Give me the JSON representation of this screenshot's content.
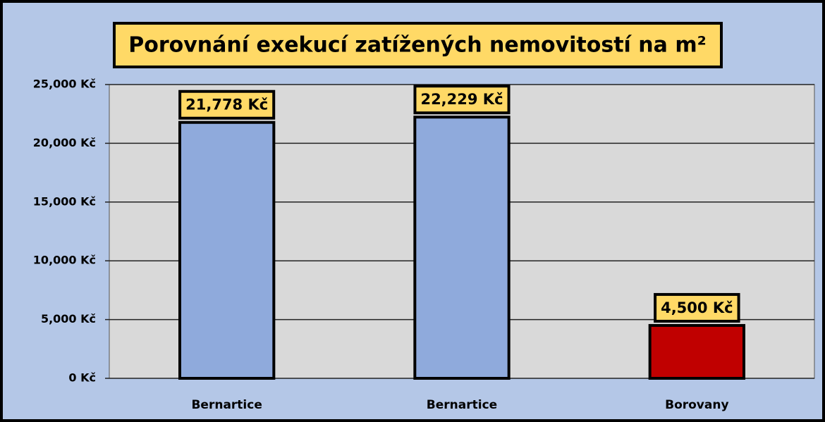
{
  "chart_data": {
    "type": "bar",
    "title": "Porovnání exekucí zatížených nemovitostí na m²",
    "categories": [
      "Bernartice",
      "Bernartice",
      "Borovany"
    ],
    "values": [
      21778,
      22229,
      4500
    ],
    "value_labels": [
      "21,778 Kč",
      "22,229 Kč",
      "4,500 Kč"
    ],
    "colors": [
      "#8faadc",
      "#8faadc",
      "#c00000"
    ],
    "ylim": [
      0,
      25000
    ],
    "yticks": [
      {
        "value": 0,
        "label": "0 Kč"
      },
      {
        "value": 5000,
        "label": "5,000 Kč"
      },
      {
        "value": 10000,
        "label": "10,000 Kč"
      },
      {
        "value": 15000,
        "label": "15,000 Kč"
      },
      {
        "value": 20000,
        "label": "20,000 Kč"
      },
      {
        "value": 25000,
        "label": "25,000 Kč"
      }
    ],
    "grid": true
  }
}
